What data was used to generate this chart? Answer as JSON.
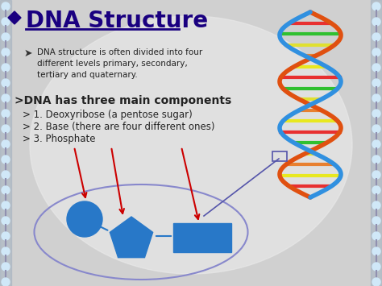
{
  "title": "DNA Structure",
  "title_color": "#1a0080",
  "bg_color": "#c8c8c8",
  "bullet1": "DNA structure is often divided into four\ndifferent levels primary, secondary,\ntertiary and quaternary.",
  "header2": ">DNA has three main components",
  "sub1": "> 1. Deoxyribose (a pentose sugar)",
  "sub2": "> 2. Base (there are four different ones)",
  "sub3": "> 3. Phosphate",
  "shape_color": "#2878c8",
  "ellipse_color": "#8888cc",
  "arrow_color": "#cc0000",
  "connector_color": "#2878c8",
  "diamond_color": "#1a0080",
  "text_color": "#222222"
}
